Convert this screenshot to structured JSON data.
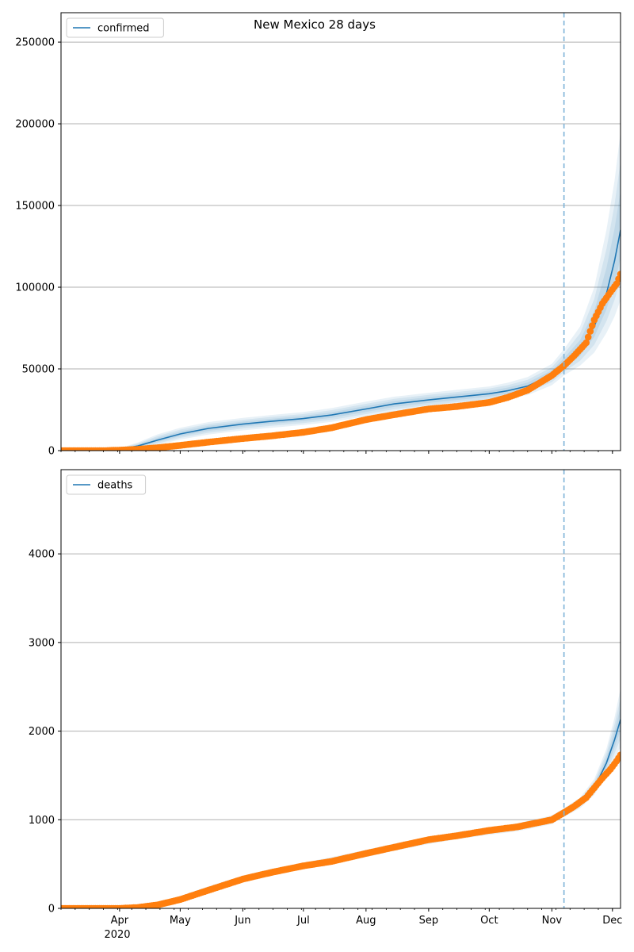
{
  "figure": {
    "title": "New Mexico 28 days",
    "colors": {
      "model": "#1f77b4",
      "band": "#1f77b4",
      "observed": "#ff7f0e",
      "forecast_line": "#7eb3d8",
      "grid": "#b0b0b0"
    }
  },
  "x_axis": {
    "range": [
      "2020-03-03",
      "2020-12-05"
    ],
    "month_labels": [
      {
        "date": "2020-04-01",
        "label": "Apr"
      },
      {
        "date": "2020-05-01",
        "label": "May"
      },
      {
        "date": "2020-06-01",
        "label": "Jun"
      },
      {
        "date": "2020-07-01",
        "label": "Jul"
      },
      {
        "date": "2020-08-01",
        "label": "Aug"
      },
      {
        "date": "2020-09-01",
        "label": "Sep"
      },
      {
        "date": "2020-10-01",
        "label": "Oct"
      },
      {
        "date": "2020-11-01",
        "label": "Nov"
      },
      {
        "date": "2020-12-01",
        "label": "Dec"
      }
    ],
    "year_label": "2020"
  },
  "forecast_date": "2020-11-07",
  "chart_data": [
    {
      "type": "line",
      "panel": "confirmed",
      "title": "New Mexico 28 days",
      "legend": [
        "confirmed"
      ],
      "legend_position": "top-left",
      "grid": "horizontal",
      "ylim": [
        0,
        268000
      ],
      "yticks": [
        0,
        50000,
        100000,
        150000,
        200000,
        250000
      ],
      "series": [
        {
          "name": "confirmed",
          "kind": "model",
          "points": [
            [
              "2020-03-03",
              0
            ],
            [
              "2020-03-20",
              100
            ],
            [
              "2020-04-01",
              800
            ],
            [
              "2020-04-10",
              2800
            ],
            [
              "2020-04-20",
              6500
            ],
            [
              "2020-05-01",
              10200
            ],
            [
              "2020-05-15",
              13600
            ],
            [
              "2020-06-01",
              16200
            ],
            [
              "2020-06-15",
              17900
            ],
            [
              "2020-07-01",
              19600
            ],
            [
              "2020-07-15",
              21800
            ],
            [
              "2020-08-01",
              25500
            ],
            [
              "2020-08-15",
              28600
            ],
            [
              "2020-09-01",
              31000
            ],
            [
              "2020-09-15",
              32800
            ],
            [
              "2020-10-01",
              34800
            ],
            [
              "2020-10-10",
              36600
            ],
            [
              "2020-10-20",
              39500
            ],
            [
              "2020-11-01",
              46500
            ],
            [
              "2020-11-07",
              53000
            ],
            [
              "2020-11-15",
              62000
            ],
            [
              "2020-11-22",
              76000
            ],
            [
              "2020-11-28",
              96000
            ],
            [
              "2020-12-02",
              116000
            ],
            [
              "2020-12-05",
              135000
            ]
          ],
          "band_upper": [
            [
              "2020-03-03",
              0
            ],
            [
              "2020-03-20",
              200
            ],
            [
              "2020-04-01",
              1500
            ],
            [
              "2020-04-10",
              5000
            ],
            [
              "2020-04-20",
              10000
            ],
            [
              "2020-05-01",
              14000
            ],
            [
              "2020-05-15",
              17500
            ],
            [
              "2020-06-01",
              20000
            ],
            [
              "2020-06-15",
              21800
            ],
            [
              "2020-07-01",
              23600
            ],
            [
              "2020-07-15",
              26000
            ],
            [
              "2020-08-01",
              30000
            ],
            [
              "2020-08-15",
              33000
            ],
            [
              "2020-09-01",
              35400
            ],
            [
              "2020-09-15",
              37200
            ],
            [
              "2020-10-01",
              39300
            ],
            [
              "2020-10-10",
              41500
            ],
            [
              "2020-10-20",
              45000
            ],
            [
              "2020-11-01",
              53000
            ],
            [
              "2020-11-07",
              62000
            ],
            [
              "2020-11-15",
              76000
            ],
            [
              "2020-11-22",
              100000
            ],
            [
              "2020-11-28",
              135000
            ],
            [
              "2020-12-02",
              165000
            ],
            [
              "2020-12-05",
              195000
            ]
          ],
          "band_lower": [
            [
              "2020-03-03",
              0
            ],
            [
              "2020-03-20",
              0
            ],
            [
              "2020-04-01",
              300
            ],
            [
              "2020-04-10",
              1200
            ],
            [
              "2020-04-20",
              3500
            ],
            [
              "2020-05-01",
              6800
            ],
            [
              "2020-05-15",
              9800
            ],
            [
              "2020-06-01",
              12400
            ],
            [
              "2020-06-15",
              14000
            ],
            [
              "2020-07-01",
              15700
            ],
            [
              "2020-07-15",
              17600
            ],
            [
              "2020-08-01",
              21000
            ],
            [
              "2020-08-15",
              24000
            ],
            [
              "2020-09-01",
              26500
            ],
            [
              "2020-09-15",
              28300
            ],
            [
              "2020-10-01",
              30300
            ],
            [
              "2020-10-10",
              31800
            ],
            [
              "2020-10-20",
              34000
            ],
            [
              "2020-11-01",
              40000
            ],
            [
              "2020-11-07",
              46000
            ],
            [
              "2020-11-15",
              52000
            ],
            [
              "2020-11-22",
              60000
            ],
            [
              "2020-11-28",
              72000
            ],
            [
              "2020-12-02",
              82000
            ],
            [
              "2020-12-05",
              92000
            ]
          ]
        },
        {
          "name": "",
          "kind": "observed",
          "points": [
            [
              "2020-03-03",
              0
            ],
            [
              "2020-03-25",
              0
            ],
            [
              "2020-04-01",
              300
            ],
            [
              "2020-04-10",
              800
            ],
            [
              "2020-04-20",
              1800
            ],
            [
              "2020-05-01",
              3200
            ],
            [
              "2020-05-15",
              5200
            ],
            [
              "2020-06-01",
              7400
            ],
            [
              "2020-06-15",
              9000
            ],
            [
              "2020-07-01",
              11200
            ],
            [
              "2020-07-15",
              14000
            ],
            [
              "2020-08-01",
              19000
            ],
            [
              "2020-08-15",
              22000
            ],
            [
              "2020-09-01",
              25500
            ],
            [
              "2020-09-15",
              27000
            ],
            [
              "2020-10-01",
              29500
            ],
            [
              "2020-10-10",
              32500
            ],
            [
              "2020-10-20",
              37000
            ],
            [
              "2020-11-01",
              46000
            ],
            [
              "2020-11-07",
              52000
            ],
            [
              "2020-11-12",
              58000
            ],
            [
              "2020-11-18",
              66000
            ],
            [
              "2020-11-22",
              80000
            ],
            [
              "2020-11-26",
              90000
            ],
            [
              "2020-11-30",
              97000
            ],
            [
              "2020-12-03",
              102000
            ],
            [
              "2020-12-05",
              108000
            ]
          ]
        }
      ]
    },
    {
      "type": "line",
      "panel": "deaths",
      "legend": [
        "deaths"
      ],
      "legend_position": "top-left",
      "grid": "horizontal",
      "ylim": [
        0,
        4950
      ],
      "yticks": [
        0,
        1000,
        2000,
        3000,
        4000
      ],
      "series": [
        {
          "name": "deaths",
          "kind": "model",
          "points": [
            [
              "2020-03-03",
              0
            ],
            [
              "2020-04-01",
              0
            ],
            [
              "2020-04-10",
              15
            ],
            [
              "2020-04-20",
              55
            ],
            [
              "2020-05-01",
              115
            ],
            [
              "2020-05-15",
              220
            ],
            [
              "2020-06-01",
              335
            ],
            [
              "2020-06-15",
              410
            ],
            [
              "2020-07-01",
              480
            ],
            [
              "2020-07-15",
              540
            ],
            [
              "2020-08-01",
              620
            ],
            [
              "2020-08-15",
              690
            ],
            [
              "2020-09-01",
              765
            ],
            [
              "2020-09-15",
              820
            ],
            [
              "2020-10-01",
              870
            ],
            [
              "2020-10-15",
              915
            ],
            [
              "2020-11-01",
              1000
            ],
            [
              "2020-11-07",
              1080
            ],
            [
              "2020-11-15",
              1190
            ],
            [
              "2020-11-22",
              1360
            ],
            [
              "2020-11-28",
              1640
            ],
            [
              "2020-12-02",
              1900
            ],
            [
              "2020-12-05",
              2130
            ]
          ],
          "band_upper": [
            [
              "2020-03-03",
              0
            ],
            [
              "2020-04-01",
              5
            ],
            [
              "2020-04-10",
              25
            ],
            [
              "2020-04-20",
              75
            ],
            [
              "2020-05-01",
              140
            ],
            [
              "2020-05-15",
              250
            ],
            [
              "2020-06-01",
              370
            ],
            [
              "2020-06-15",
              445
            ],
            [
              "2020-07-01",
              515
            ],
            [
              "2020-07-15",
              580
            ],
            [
              "2020-08-01",
              660
            ],
            [
              "2020-08-15",
              730
            ],
            [
              "2020-09-01",
              805
            ],
            [
              "2020-09-15",
              860
            ],
            [
              "2020-10-01",
              910
            ],
            [
              "2020-10-15",
              960
            ],
            [
              "2020-11-01",
              1050
            ],
            [
              "2020-11-07",
              1130
            ],
            [
              "2020-11-15",
              1250
            ],
            [
              "2020-11-22",
              1460
            ],
            [
              "2020-11-28",
              1800
            ],
            [
              "2020-12-02",
              2150
            ],
            [
              "2020-12-05",
              2480
            ]
          ],
          "band_lower": [
            [
              "2020-03-03",
              0
            ],
            [
              "2020-04-01",
              0
            ],
            [
              "2020-04-10",
              5
            ],
            [
              "2020-04-20",
              35
            ],
            [
              "2020-05-01",
              90
            ],
            [
              "2020-05-15",
              190
            ],
            [
              "2020-06-01",
              300
            ],
            [
              "2020-06-15",
              375
            ],
            [
              "2020-07-01",
              445
            ],
            [
              "2020-07-15",
              500
            ],
            [
              "2020-08-01",
              580
            ],
            [
              "2020-08-15",
              650
            ],
            [
              "2020-09-01",
              725
            ],
            [
              "2020-09-15",
              780
            ],
            [
              "2020-10-01",
              830
            ],
            [
              "2020-10-15",
              870
            ],
            [
              "2020-11-01",
              950
            ],
            [
              "2020-11-07",
              1030
            ],
            [
              "2020-11-15",
              1130
            ],
            [
              "2020-11-22",
              1280
            ],
            [
              "2020-11-28",
              1500
            ],
            [
              "2020-12-02",
              1680
            ],
            [
              "2020-12-05",
              1820
            ]
          ]
        },
        {
          "name": "",
          "kind": "observed",
          "points": [
            [
              "2020-03-03",
              0
            ],
            [
              "2020-04-01",
              0
            ],
            [
              "2020-04-10",
              10
            ],
            [
              "2020-04-20",
              40
            ],
            [
              "2020-05-01",
              100
            ],
            [
              "2020-05-15",
              205
            ],
            [
              "2020-06-01",
              330
            ],
            [
              "2020-06-15",
              405
            ],
            [
              "2020-07-01",
              480
            ],
            [
              "2020-07-15",
              530
            ],
            [
              "2020-08-01",
              620
            ],
            [
              "2020-08-15",
              690
            ],
            [
              "2020-09-01",
              775
            ],
            [
              "2020-09-15",
              820
            ],
            [
              "2020-10-01",
              880
            ],
            [
              "2020-10-15",
              920
            ],
            [
              "2020-11-01",
              1000
            ],
            [
              "2020-11-07",
              1080
            ],
            [
              "2020-11-12",
              1150
            ],
            [
              "2020-11-18",
              1250
            ],
            [
              "2020-11-22",
              1360
            ],
            [
              "2020-11-26",
              1470
            ],
            [
              "2020-11-30",
              1570
            ],
            [
              "2020-12-03",
              1660
            ],
            [
              "2020-12-05",
              1730
            ]
          ]
        }
      ]
    }
  ]
}
